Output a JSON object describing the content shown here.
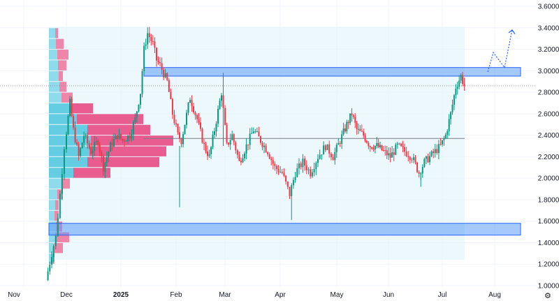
{
  "chart_data": {
    "type": "candlestick",
    "title": "",
    "y_axis": {
      "ticks": [
        "3.6000",
        "3.4000",
        "3.2000",
        "3.0000",
        "2.8000",
        "2.6000",
        "2.4000",
        "2.2000",
        "2.0000",
        "1.8000",
        "1.6000",
        "1.4000",
        "1.2000",
        "1.0000"
      ],
      "range": [
        0.99,
        3.62
      ]
    },
    "x_axis": {
      "ticks": [
        "Nov",
        "Dec",
        "2025",
        "Feb",
        "Mar",
        "Apr",
        "May",
        "Jun",
        "Jul",
        "Aug"
      ],
      "bold_ticks": [
        "2025"
      ]
    },
    "price_line": 2.86,
    "horizontal_line": 2.37,
    "zones": [
      {
        "name": "resistance-zone",
        "from": 2.95,
        "to": 3.03,
        "color": "#5b9cf6"
      },
      {
        "name": "support-zone",
        "from": 1.47,
        "to": 1.58,
        "color": "#5b9cf6"
      }
    ],
    "range_box": {
      "from": 1.24,
      "to": 3.41,
      "color": "#e6f6fb"
    },
    "projection": {
      "points": [
        2.99,
        3.17,
        3.03,
        3.38
      ],
      "color": "#2962ff"
    },
    "volume_profile": {
      "bins": [
        {
          "price": 3.35,
          "up": 9,
          "down": 4
        },
        {
          "price": 3.25,
          "up": 10,
          "down": 11
        },
        {
          "price": 3.15,
          "up": 12,
          "down": 16
        },
        {
          "price": 3.05,
          "up": 13,
          "down": 12
        },
        {
          "price": 2.95,
          "up": 14,
          "down": 6
        },
        {
          "price": 2.85,
          "up": 15,
          "down": 10
        },
        {
          "price": 2.75,
          "up": 18,
          "down": 16
        },
        {
          "price": 2.65,
          "up": 30,
          "down": 33
        },
        {
          "price": 2.55,
          "up": 40,
          "down": 95
        },
        {
          "price": 2.45,
          "up": 55,
          "down": 90
        },
        {
          "price": 2.35,
          "up": 60,
          "down": 118
        },
        {
          "price": 2.25,
          "up": 58,
          "down": 110
        },
        {
          "price": 2.15,
          "up": 55,
          "down": 103
        },
        {
          "price": 2.05,
          "up": 35,
          "down": 53
        },
        {
          "price": 1.95,
          "up": 20,
          "down": 10
        },
        {
          "price": 1.85,
          "up": 12,
          "down": 8
        },
        {
          "price": 1.75,
          "up": 9,
          "down": 5
        },
        {
          "price": 1.65,
          "up": 8,
          "down": 6
        },
        {
          "price": 1.55,
          "up": 10,
          "down": 9
        },
        {
          "price": 1.45,
          "up": 9,
          "down": 20
        },
        {
          "price": 1.35,
          "up": 8,
          "down": 12
        },
        {
          "price": 1.25,
          "up": 5,
          "down": 3
        }
      ],
      "colors": {
        "up": "#7fd6e8",
        "down": "#f0729b",
        "value_area_up": "#4cc6dc",
        "value_area_down": "#e8417c"
      }
    },
    "candle_colors": {
      "up": "#089981",
      "down": "#f23645"
    },
    "path": [
      [
        "Nov 18",
        1.05
      ],
      [
        "Nov 22",
        1.3
      ],
      [
        "Nov 25",
        1.45
      ],
      [
        "Nov 28",
        1.85
      ],
      [
        "Dec 1",
        2.3
      ],
      [
        "Dec 4",
        2.7
      ],
      [
        "Dec 6",
        2.45
      ],
      [
        "Dec 9",
        2.2
      ],
      [
        "Dec 12",
        2.4
      ],
      [
        "Dec 16",
        2.25
      ],
      [
        "Dec 20",
        2.35
      ],
      [
        "Dec 23",
        2.1
      ],
      [
        "Dec 27",
        2.3
      ],
      [
        "Dec 31",
        2.4
      ],
      [
        "Jan 3",
        2.35
      ],
      [
        "Jan 7",
        2.4
      ],
      [
        "Jan 10",
        2.55
      ],
      [
        "Jan 13",
        2.8
      ],
      [
        "Jan 15",
        3.2
      ],
      [
        "Jan 17",
        3.35
      ],
      [
        "Jan 20",
        3.25
      ],
      [
        "Jan 22",
        3.1
      ],
      [
        "Jan 24",
        3.05
      ],
      [
        "Jan 28",
        2.9
      ],
      [
        "Jan 31",
        2.6
      ],
      [
        "Feb 3",
        2.4
      ],
      [
        "Feb 5",
        2.35
      ],
      [
        "Feb 10",
        2.75
      ],
      [
        "Feb 14",
        2.55
      ],
      [
        "Feb 18",
        2.3
      ],
      [
        "Feb 21",
        2.2
      ],
      [
        "Feb 24",
        2.45
      ],
      [
        "Feb 28",
        2.8
      ],
      [
        "Mar 3",
        2.3
      ],
      [
        "Mar 6",
        2.4
      ],
      [
        "Mar 10",
        2.15
      ],
      [
        "Mar 14",
        2.3
      ],
      [
        "Mar 18",
        2.45
      ],
      [
        "Mar 22",
        2.35
      ],
      [
        "Mar 26",
        2.25
      ],
      [
        "Mar 30",
        2.1
      ],
      [
        "Apr 3",
        2.05
      ],
      [
        "Apr 7",
        1.85
      ],
      [
        "Apr 10",
        2.05
      ],
      [
        "Apr 14",
        2.15
      ],
      [
        "Apr 18",
        2.05
      ],
      [
        "Apr 22",
        2.2
      ],
      [
        "Apr 26",
        2.3
      ],
      [
        "Apr 30",
        2.2
      ],
      [
        "May 4",
        2.35
      ],
      [
        "May 8",
        2.5
      ],
      [
        "May 11",
        2.6
      ],
      [
        "May 14",
        2.45
      ],
      [
        "May 18",
        2.4
      ],
      [
        "May 22",
        2.3
      ],
      [
        "May 26",
        2.3
      ],
      [
        "May 30",
        2.25
      ],
      [
        "Jun 3",
        2.2
      ],
      [
        "Jun 7",
        2.3
      ],
      [
        "Jun 11",
        2.25
      ],
      [
        "Jun 15",
        2.2
      ],
      [
        "Jun 19",
        2.05
      ],
      [
        "Jun 22",
        2.15
      ],
      [
        "Jun 25",
        2.2
      ],
      [
        "Jun 28",
        2.25
      ],
      [
        "Jul 1",
        2.3
      ],
      [
        "Jul 4",
        2.4
      ],
      [
        "Jul 7",
        2.6
      ],
      [
        "Jul 10",
        2.85
      ],
      [
        "Jul 13",
        2.95
      ],
      [
        "Jul 15",
        2.86
      ]
    ]
  }
}
